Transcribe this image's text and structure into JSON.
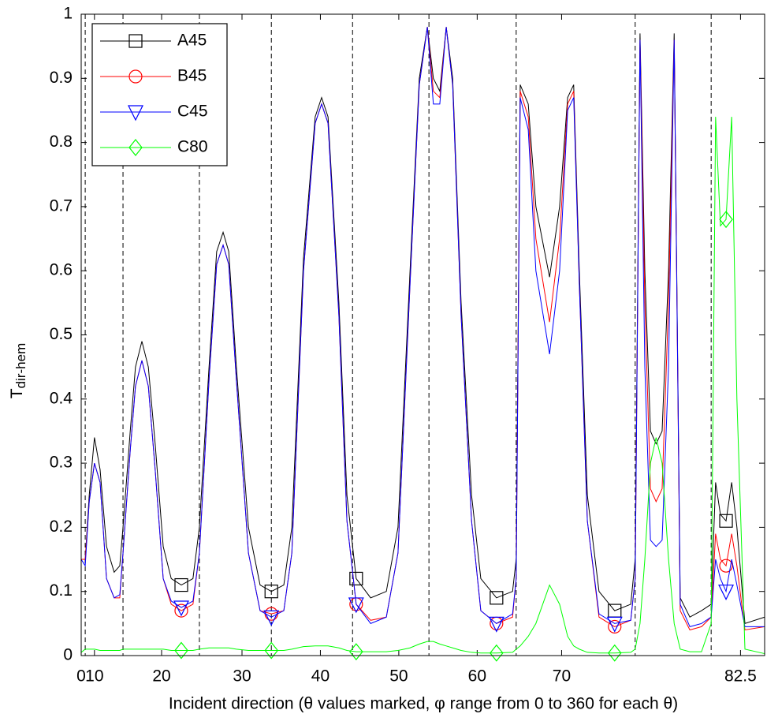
{
  "chart_data": {
    "type": "line",
    "y_label": "T",
    "y_label_subscript": "dir-hem",
    "x_label": "Incident direction (θ values marked, φ range from 0 to 360 for each θ)",
    "xlim": [
      0,
      170
    ],
    "ylim": [
      0,
      1
    ],
    "xticks": [
      {
        "value": 0,
        "label": "0"
      },
      {
        "value": 3.3,
        "label": "10"
      },
      {
        "value": 20,
        "label": "20"
      },
      {
        "value": 40,
        "label": "30"
      },
      {
        "value": 59.5,
        "label": "40"
      },
      {
        "value": 79,
        "label": "50"
      },
      {
        "value": 98.5,
        "label": "60"
      },
      {
        "value": 119.5,
        "label": "70"
      },
      {
        "value": 164,
        "label": "82.5"
      }
    ],
    "yticks": [
      0,
      0.1,
      0.2,
      0.3,
      0.4,
      0.5,
      0.6,
      0.7,
      0.8,
      0.9,
      1
    ],
    "vlines": [
      1,
      10.4,
      29.4,
      47.3,
      67.5,
      86.5,
      108.2,
      137.8,
      156.7
    ],
    "legend": "upper left",
    "x": [
      0,
      1,
      2,
      3.3,
      4.7,
      6.3,
      8.2,
      9.6,
      10.4,
      12.2,
      13.5,
      15.1,
      16.7,
      18.4,
      20.4,
      22.4,
      24.9,
      27.8,
      29.4,
      31.8,
      33.7,
      35.3,
      36.7,
      38.6,
      41.6,
      44.5,
      47.3,
      50.4,
      52.4,
      55.3,
      58.2,
      59.8,
      61.4,
      64.1,
      66.1,
      68.4,
      72,
      75.9,
      78.8,
      81.8,
      84.1,
      86.1,
      87.6,
      89.2,
      90.8,
      92.4,
      94.5,
      97.1,
      99.4,
      103.3,
      107.3,
      108.2,
      109.2,
      111.2,
      113.1,
      116.5,
      119,
      121,
      122.5,
      123.9,
      125.9,
      128.8,
      132.7,
      136.7,
      137.8,
      139,
      140.2,
      141.6,
      143,
      144.5,
      146.1,
      147.5,
      149,
      151.4,
      154.3,
      156.7,
      157.8,
      159,
      160.4,
      161.8,
      163.1,
      165.1,
      170
    ],
    "series": [
      {
        "name": "A45",
        "color": "#000000",
        "marker": "square",
        "values": [
          0.15,
          0.15,
          0.25,
          0.34,
          0.29,
          0.17,
          0.13,
          0.14,
          0.2,
          0.35,
          0.45,
          0.49,
          0.45,
          0.33,
          0.17,
          0.12,
          0.11,
          0.12,
          0.2,
          0.45,
          0.63,
          0.66,
          0.63,
          0.45,
          0.2,
          0.11,
          0.1,
          0.11,
          0.2,
          0.62,
          0.84,
          0.87,
          0.84,
          0.55,
          0.25,
          0.12,
          0.09,
          0.1,
          0.2,
          0.6,
          0.9,
          0.98,
          0.9,
          0.88,
          0.98,
          0.9,
          0.55,
          0.25,
          0.12,
          0.09,
          0.1,
          0.15,
          0.89,
          0.86,
          0.7,
          0.59,
          0.7,
          0.87,
          0.89,
          0.6,
          0.25,
          0.1,
          0.07,
          0.08,
          0.15,
          0.97,
          0.6,
          0.35,
          0.33,
          0.35,
          0.6,
          0.97,
          0.09,
          0.06,
          0.07,
          0.08,
          0.27,
          0.22,
          0.21,
          0.27,
          0.2,
          0.05,
          0.06
        ]
      },
      {
        "name": "B45",
        "color": "#ff0000",
        "marker": "circle",
        "values": [
          0.15,
          0.15,
          0.24,
          0.3,
          0.27,
          0.12,
          0.09,
          0.09,
          0.16,
          0.32,
          0.42,
          0.46,
          0.42,
          0.29,
          0.12,
          0.08,
          0.07,
          0.08,
          0.16,
          0.43,
          0.61,
          0.64,
          0.61,
          0.43,
          0.16,
          0.07,
          0.065,
          0.07,
          0.16,
          0.6,
          0.83,
          0.86,
          0.83,
          0.53,
          0.21,
          0.08,
          0.055,
          0.06,
          0.16,
          0.58,
          0.89,
          0.98,
          0.88,
          0.87,
          0.98,
          0.89,
          0.53,
          0.21,
          0.07,
          0.05,
          0.06,
          0.12,
          0.88,
          0.84,
          0.65,
          0.52,
          0.65,
          0.86,
          0.88,
          0.58,
          0.21,
          0.06,
          0.045,
          0.055,
          0.12,
          0.96,
          0.55,
          0.26,
          0.24,
          0.26,
          0.55,
          0.96,
          0.07,
          0.04,
          0.045,
          0.06,
          0.19,
          0.15,
          0.14,
          0.19,
          0.14,
          0.04,
          0.045
        ]
      },
      {
        "name": "C45",
        "color": "#0000ff",
        "marker": "triangle",
        "values": [
          0.15,
          0.14,
          0.24,
          0.3,
          0.27,
          0.12,
          0.09,
          0.095,
          0.16,
          0.32,
          0.42,
          0.46,
          0.42,
          0.29,
          0.12,
          0.085,
          0.075,
          0.085,
          0.16,
          0.43,
          0.61,
          0.64,
          0.61,
          0.43,
          0.16,
          0.07,
          0.06,
          0.07,
          0.16,
          0.6,
          0.83,
          0.86,
          0.83,
          0.53,
          0.21,
          0.08,
          0.05,
          0.06,
          0.16,
          0.58,
          0.89,
          0.98,
          0.86,
          0.86,
          0.98,
          0.89,
          0.53,
          0.21,
          0.07,
          0.05,
          0.065,
          0.12,
          0.87,
          0.82,
          0.6,
          0.47,
          0.6,
          0.85,
          0.87,
          0.58,
          0.21,
          0.065,
          0.05,
          0.055,
          0.12,
          0.96,
          0.45,
          0.18,
          0.17,
          0.18,
          0.45,
          0.96,
          0.08,
          0.045,
          0.05,
          0.06,
          0.15,
          0.12,
          0.1,
          0.15,
          0.11,
          0.045,
          0.045
        ]
      },
      {
        "name": "C80",
        "color": "#00ff00",
        "marker": "diamond",
        "values": [
          0.005,
          0.01,
          0.01,
          0.01,
          0.008,
          0.008,
          0.008,
          0.008,
          0.01,
          0.01,
          0.01,
          0.01,
          0.01,
          0.01,
          0.01,
          0.008,
          0.008,
          0.008,
          0.01,
          0.012,
          0.012,
          0.012,
          0.012,
          0.01,
          0.008,
          0.008,
          0.008,
          0.008,
          0.01,
          0.014,
          0.015,
          0.015,
          0.015,
          0.012,
          0.008,
          0.006,
          0.006,
          0.006,
          0.008,
          0.012,
          0.018,
          0.022,
          0.022,
          0.018,
          0.015,
          0.012,
          0.008,
          0.005,
          0.004,
          0.004,
          0.005,
          0.01,
          0.015,
          0.03,
          0.05,
          0.11,
          0.08,
          0.03,
          0.015,
          0.01,
          0.005,
          0.004,
          0.004,
          0.005,
          0.01,
          0.05,
          0.15,
          0.3,
          0.34,
          0.3,
          0.15,
          0.05,
          0.01,
          0.006,
          0.006,
          0.05,
          0.84,
          0.67,
          0.68,
          0.84,
          0.4,
          0.01,
          0.003
        ]
      }
    ]
  }
}
